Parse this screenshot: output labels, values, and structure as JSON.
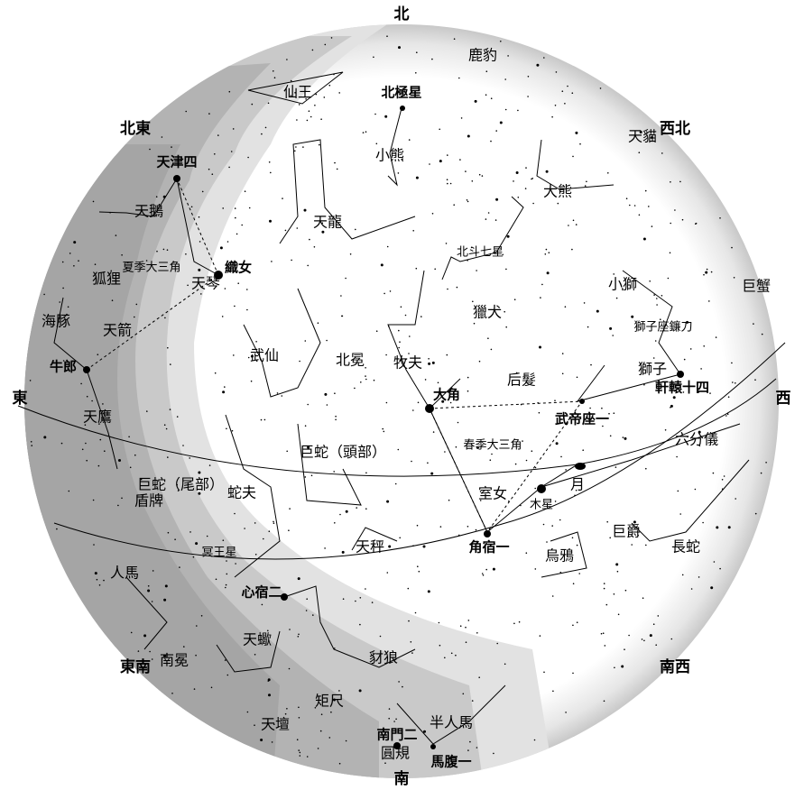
{
  "directions": [
    "北",
    "南",
    "東",
    "西",
    "北東",
    "西北",
    "東南",
    "南西"
  ],
  "bright_stars": [
    "北極星",
    "天津四",
    "織女",
    "牛郎",
    "軒轅十四",
    "大角",
    "武帝座一",
    "角宿一",
    "心宿二",
    "南門二",
    "馬腹一"
  ],
  "constellations": [
    "鹿豹",
    "仙王",
    "天貓",
    "小熊",
    "大熊",
    "天鵝",
    "天龍",
    "小獅",
    "巨蟹",
    "狐狸",
    "天琴",
    "海豚",
    "天箭",
    "獵犬",
    "武仙",
    "北冕",
    "牧夫",
    "后髮",
    "獅子",
    "天鷹",
    "六分儀",
    "巨蛇（頭部）",
    "巨蛇（尾部）",
    "盾牌",
    "蛇夫",
    "室女",
    "巨爵",
    "長蛇",
    "天秤",
    "烏鴉",
    "人馬",
    "天蠍",
    "南冕",
    "豺狼",
    "矩尺",
    "半人馬",
    "天壇",
    "圓規"
  ],
  "asterisms": [
    "北斗七星",
    "夏季大三角",
    "獅子座鐮刀",
    "春季大三角"
  ],
  "bodies": [
    "月",
    "木星",
    "冥王星"
  ]
}
